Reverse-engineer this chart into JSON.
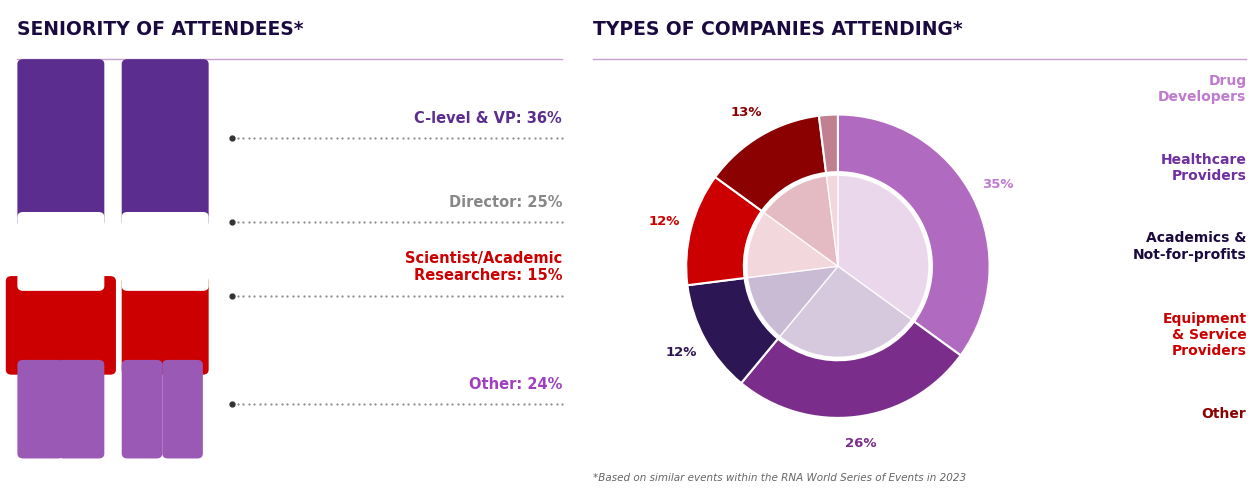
{
  "left_title": "SENIORITY OF ATTENDEES*",
  "right_title": "TYPES OF COMPANIES ATTENDING*",
  "seniority_labels": [
    "C-level & VP: 36%",
    "Director: 25%",
    "Scientist/Academic\nResearchers: 15%",
    "Other: 24%"
  ],
  "seniority_colors": [
    "#5b2d8e",
    "#888888",
    "#cc0000",
    "#a040c0"
  ],
  "pie_values": [
    35,
    26,
    12,
    12,
    13,
    2
  ],
  "pie_colors": [
    "#b06ac0",
    "#7b2d8b",
    "#2c1654",
    "#cc0000",
    "#8b0000",
    "#c08090"
  ],
  "pie_inner_colors": [
    "#e8d0e8",
    "#d0c0d8",
    "#c0b0cc",
    "#f0d0d8",
    "#e0b0b8",
    "#f0d0d8"
  ],
  "pct_labels": [
    "35%",
    "26%",
    "12%",
    "12%",
    "13%",
    ""
  ],
  "pct_colors": [
    "#c07ad0",
    "#7b2d8b",
    "#2c1654",
    "#cc0000",
    "#8b0000",
    ""
  ],
  "legend_labels": [
    "Drug\nDevelopers",
    "Healthcare\nProviders",
    "Academics &\nNot-for-profits",
    "Equipment\n& Service\nProviders",
    "Other"
  ],
  "legend_text_colors": [
    "#c07ad0",
    "#7030a0",
    "#1a0a40",
    "#cc0000",
    "#8b0000"
  ],
  "footnote": "*Based on similar events within the RNA World Series of Events in 2023",
  "title_color": "#1a0a40",
  "hr_color": "#c8a0d0",
  "footnote_color": "#666666"
}
